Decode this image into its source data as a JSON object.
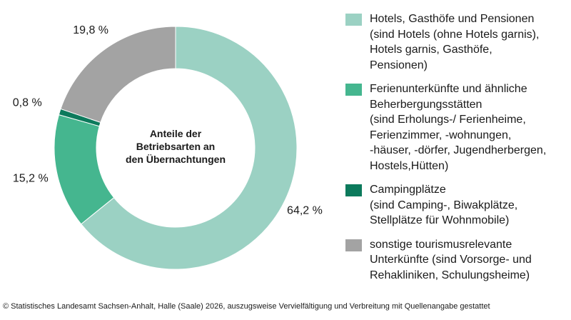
{
  "chart_data": {
    "type": "pie",
    "title": "Anteile der\nBetriebsarten an\nden Übernachtungen",
    "series": [
      {
        "name": "Hotels, Gasthöfe und Pensionen\n(sind Hotels (ohne Hotels garnis),\nHotels garnis, Gasthöfe,\nPensionen)",
        "value": 64.2,
        "label": "64,2 %",
        "color": "#9bd1c3"
      },
      {
        "name": "Ferienunterkünfte und ähnliche\nBeherbergungsstätten\n(sind Erholungs-/ Ferienheime,\nFerienzimmer, -wohnungen,\n-häuser, -dörfer, Jugendherbergen,\nHostels,Hütten)",
        "value": 15.2,
        "label": "15,2 %",
        "color": "#45b68f"
      },
      {
        "name": "Campingplätze\n(sind Camping-, Biwakplätze,\nStellplätze für Wohnmobile)",
        "value": 0.8,
        "label": "0,8 %",
        "color": "#0c7a5c"
      },
      {
        "name": "sonstige tourismusrelevante\nUnterkünfte (sind Vorsorge- und\nRehakliniken, Schulungsheime)",
        "value": 19.8,
        "label": "19,8 %",
        "color": "#a3a3a3"
      }
    ],
    "legend_position": "right"
  },
  "footer": "© Statistisches Landesamt Sachsen-Anhalt, Halle (Saale) 2026, auszugsweise Vervielfältigung und Verbreitung mit Quellenangabe gestattet"
}
